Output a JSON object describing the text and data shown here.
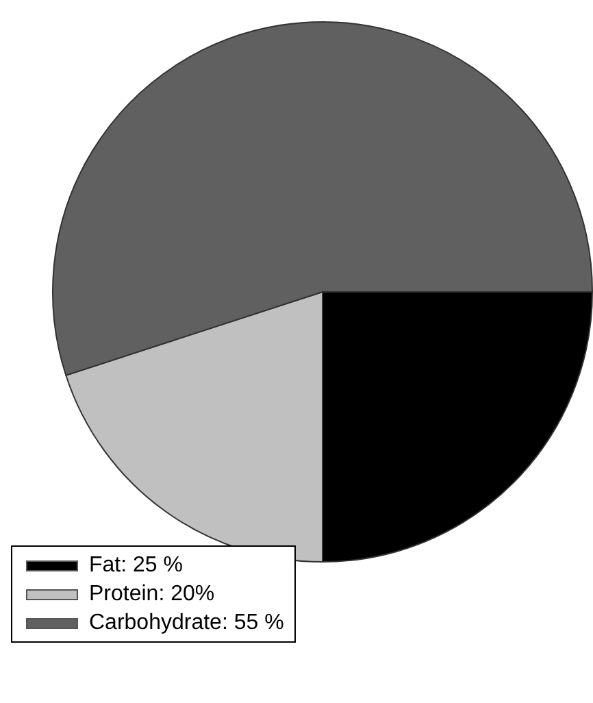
{
  "chart_data": {
    "type": "pie",
    "categories": [
      "Fat: 25 %",
      "Protein: 20%",
      "Carbohydrate: 55 %"
    ],
    "values": [
      25,
      20,
      55
    ],
    "colors": [
      "#000000",
      "#c0c0c0",
      "#606060"
    ],
    "legend": "bottom left"
  }
}
